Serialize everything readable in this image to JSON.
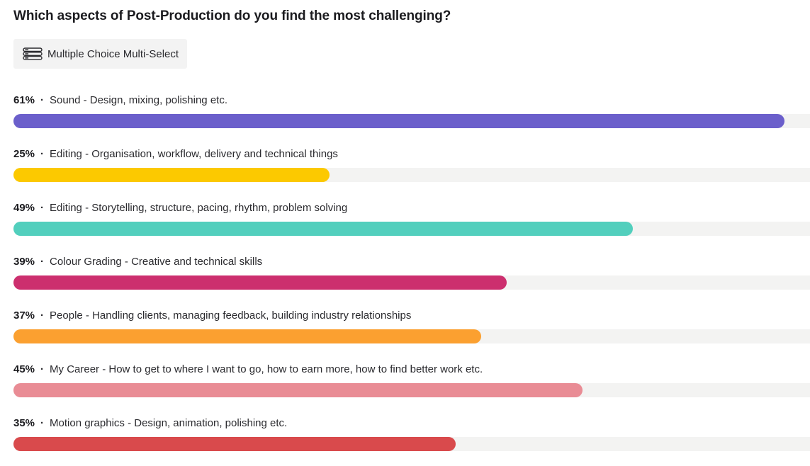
{
  "question": {
    "title": "Which aspects of Post-Production do you find the most challenging?",
    "type_label": "Multiple Choice Multi-Select",
    "type_icon": "multi-select-list-icon"
  },
  "chart_data": {
    "type": "bar",
    "orientation": "horizontal",
    "title": "Which aspects of Post-Production do you find the most challenging?",
    "xlim": [
      0,
      63
    ],
    "categories": [
      "Sound - Design, mixing, polishing etc.",
      "Editing - Organisation, workflow, delivery and technical things",
      "Editing - Storytelling, structure, pacing, rhythm, problem solving",
      "Colour Grading - Creative and technical skills",
      "People - Handling clients, managing feedback, building industry relationships",
      "My Career - How to get to where I want to go, how to earn more, how to find better work etc.",
      "Motion graphics - Design, animation, polishing etc."
    ],
    "values": [
      61,
      25,
      49,
      39,
      37,
      45,
      35
    ],
    "value_labels": [
      "61%",
      "25%",
      "49%",
      "39%",
      "37%",
      "45%",
      "35%"
    ],
    "colors": [
      "#6b5fcb",
      "#fcc900",
      "#52cfbd",
      "#cc2f6e",
      "#fba030",
      "#e98c95",
      "#d94a4c"
    ],
    "track_color": "#f3f3f2",
    "grid": false,
    "legend": "none"
  }
}
